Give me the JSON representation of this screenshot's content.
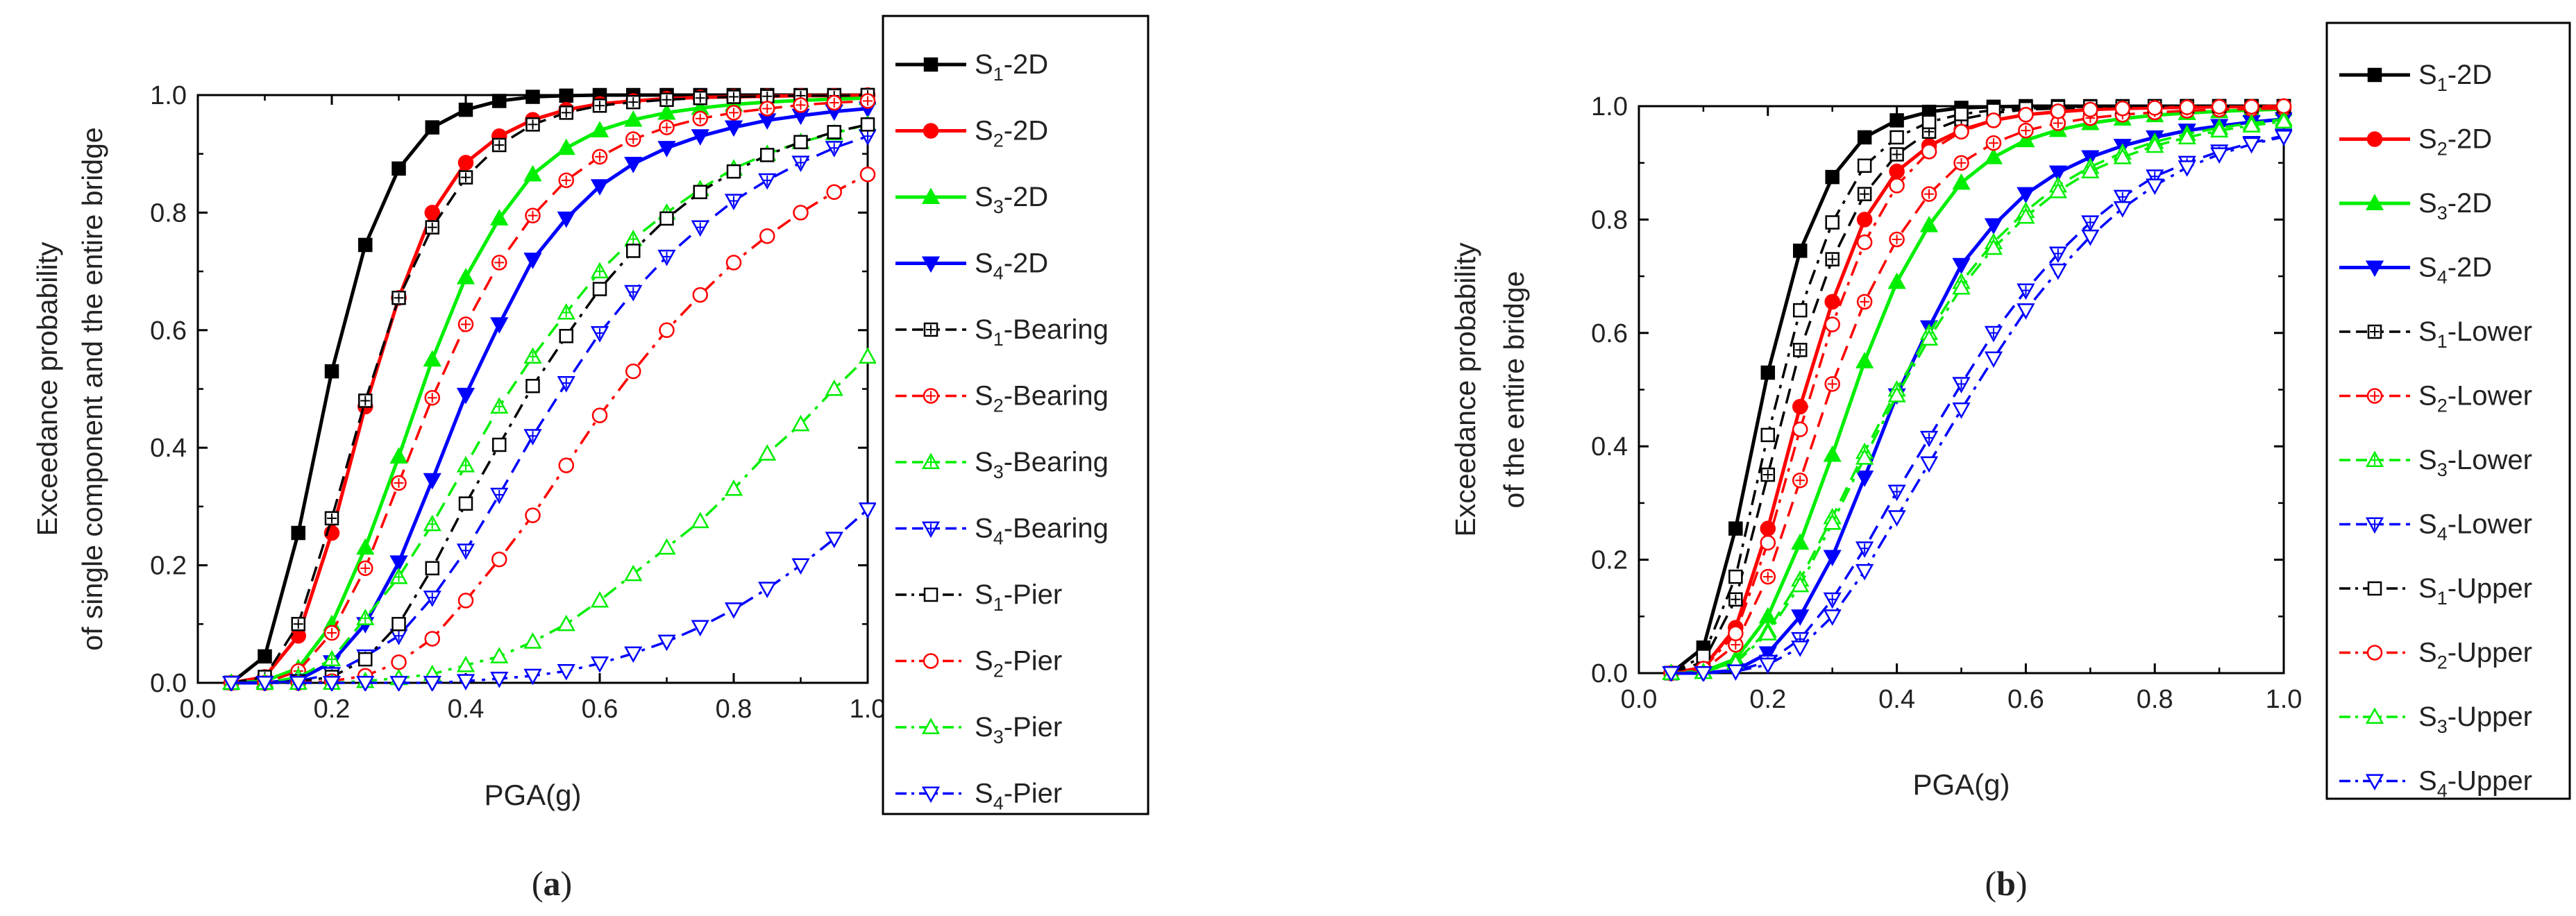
{
  "chart_data": [
    {
      "type": "line",
      "panel_label": "(a)",
      "xlabel": "PGA(g)",
      "ylabel_lines": [
        "Exceedance probability",
        "of single component and the entire bridge"
      ],
      "xlim": [
        0,
        1.0
      ],
      "ylim": [
        0,
        1.0
      ],
      "xticks": [
        "0.0",
        "0.2",
        "0.4",
        "0.6",
        "0.8",
        "1.0"
      ],
      "yticks": [
        "0.0",
        "0.2",
        "0.4",
        "0.6",
        "0.8",
        "1.0"
      ],
      "grid": false,
      "legend_position": "right",
      "x": [
        0.05,
        0.1,
        0.15,
        0.2,
        0.25,
        0.3,
        0.35,
        0.4,
        0.45,
        0.5,
        0.55,
        0.6,
        0.65,
        0.7,
        0.75,
        0.8,
        0.85,
        0.9,
        0.95,
        1.0
      ],
      "series": [
        {
          "sub": "1",
          "suffix": "-2D",
          "color": "#000000",
          "dash": "solid",
          "marker": "square",
          "filled": true,
          "values": [
            0.0,
            0.045,
            0.255,
            0.53,
            0.745,
            0.875,
            0.945,
            0.975,
            0.99,
            0.997,
            0.999,
            1.0,
            1.0,
            1.0,
            1.0,
            1.0,
            1.0,
            1.0,
            1.0,
            1.0
          ]
        },
        {
          "sub": "2",
          "suffix": "-2D",
          "color": "#ff0000",
          "dash": "solid",
          "marker": "circle",
          "filled": true,
          "values": [
            0.0,
            0.01,
            0.08,
            0.255,
            0.47,
            0.655,
            0.8,
            0.885,
            0.93,
            0.958,
            0.975,
            0.985,
            0.99,
            0.994,
            0.996,
            0.997,
            0.998,
            0.999,
            0.999,
            1.0
          ]
        },
        {
          "sub": "3",
          "suffix": "-2D",
          "color": "#00ee00",
          "dash": "solid",
          "marker": "triangle-up",
          "filled": true,
          "values": [
            0.0,
            0.003,
            0.025,
            0.1,
            0.23,
            0.385,
            0.55,
            0.69,
            0.79,
            0.865,
            0.91,
            0.94,
            0.958,
            0.97,
            0.978,
            0.984,
            0.988,
            0.991,
            0.993,
            0.995
          ]
        },
        {
          "sub": "4",
          "suffix": "-2D",
          "color": "#0000ff",
          "dash": "solid",
          "marker": "triangle-down",
          "filled": true,
          "values": [
            0.0,
            0.0,
            0.005,
            0.035,
            0.1,
            0.205,
            0.345,
            0.49,
            0.61,
            0.72,
            0.79,
            0.845,
            0.883,
            0.91,
            0.93,
            0.945,
            0.957,
            0.965,
            0.972,
            0.977
          ]
        },
        {
          "sub": "1",
          "suffix": "-Bearing",
          "color": "#000000",
          "dash": "dash",
          "marker": "square-plus",
          "filled": false,
          "values": [
            0.0,
            0.01,
            0.1,
            0.28,
            0.48,
            0.655,
            0.775,
            0.86,
            0.915,
            0.95,
            0.97,
            0.982,
            0.988,
            0.992,
            0.995,
            0.997,
            0.998,
            0.999,
            0.999,
            1.0
          ]
        },
        {
          "sub": "2",
          "suffix": "-Bearing",
          "color": "#ff0000",
          "dash": "dash",
          "marker": "circle-plus",
          "filled": false,
          "values": [
            0.0,
            0.0,
            0.02,
            0.085,
            0.195,
            0.34,
            0.485,
            0.61,
            0.715,
            0.795,
            0.855,
            0.895,
            0.925,
            0.945,
            0.96,
            0.97,
            0.977,
            0.983,
            0.987,
            0.99
          ]
        },
        {
          "sub": "3",
          "suffix": "-Bearing",
          "color": "#00ee00",
          "dash": "dash",
          "marker": "triangle-up-plus",
          "filled": false,
          "values": [
            0.0,
            0.0,
            0.01,
            0.04,
            0.11,
            0.18,
            0.27,
            0.37,
            0.47,
            0.555,
            0.63,
            0.7,
            0.755,
            0.8,
            0.84,
            0.875,
            0.9,
            0.92,
            0.935,
            0.95
          ]
        },
        {
          "sub": "4",
          "suffix": "-Bearing",
          "color": "#0000ff",
          "dash": "dash",
          "marker": "triangle-down-plus",
          "filled": false,
          "values": [
            0.0,
            0.0,
            0.003,
            0.015,
            0.045,
            0.08,
            0.145,
            0.225,
            0.32,
            0.42,
            0.51,
            0.595,
            0.665,
            0.725,
            0.775,
            0.82,
            0.855,
            0.885,
            0.91,
            0.93
          ]
        },
        {
          "sub": "1",
          "suffix": "-Pier",
          "color": "#000000",
          "dash": "dashdot",
          "marker": "square",
          "filled": false,
          "values": [
            0.0,
            0.0,
            0.002,
            0.01,
            0.04,
            0.1,
            0.195,
            0.305,
            0.405,
            0.505,
            0.59,
            0.67,
            0.735,
            0.79,
            0.835,
            0.87,
            0.898,
            0.92,
            0.937,
            0.95
          ]
        },
        {
          "sub": "2",
          "suffix": "-Pier",
          "color": "#ff0000",
          "dash": "dashdot",
          "marker": "circle",
          "filled": false,
          "values": [
            0.0,
            0.0,
            0.0,
            0.003,
            0.012,
            0.035,
            0.075,
            0.14,
            0.21,
            0.285,
            0.37,
            0.455,
            0.53,
            0.6,
            0.66,
            0.715,
            0.76,
            0.8,
            0.835,
            0.865
          ]
        },
        {
          "sub": "3",
          "suffix": "-Pier",
          "color": "#00ee00",
          "dash": "dashdot",
          "marker": "triangle-up",
          "filled": false,
          "values": [
            0.0,
            0.0,
            0.0,
            0.0,
            0.003,
            0.008,
            0.015,
            0.03,
            0.045,
            0.07,
            0.1,
            0.14,
            0.185,
            0.23,
            0.275,
            0.33,
            0.39,
            0.44,
            0.5,
            0.555
          ]
        },
        {
          "sub": "4",
          "suffix": "-Pier",
          "color": "#0000ff",
          "dash": "dashdot",
          "marker": "triangle-down",
          "filled": false,
          "values": [
            0.0,
            0.0,
            0.0,
            0.0,
            0.0,
            0.0,
            0.0,
            0.003,
            0.007,
            0.012,
            0.02,
            0.033,
            0.05,
            0.07,
            0.095,
            0.125,
            0.16,
            0.2,
            0.245,
            0.295
          ]
        }
      ]
    },
    {
      "type": "line",
      "panel_label": "(b)",
      "xlabel": "PGA(g)",
      "ylabel_lines": [
        "Exceedance probability",
        "of the entire bridge"
      ],
      "xlim": [
        0,
        1.0
      ],
      "ylim": [
        0,
        1.0
      ],
      "xticks": [
        "0.0",
        "0.2",
        "0.4",
        "0.6",
        "0.8",
        "1.0"
      ],
      "yticks": [
        "0.0",
        "0.2",
        "0.4",
        "0.6",
        "0.8",
        "1.0"
      ],
      "grid": false,
      "legend_position": "right",
      "x": [
        0.05,
        0.1,
        0.15,
        0.2,
        0.25,
        0.3,
        0.35,
        0.4,
        0.45,
        0.5,
        0.55,
        0.6,
        0.65,
        0.7,
        0.75,
        0.8,
        0.85,
        0.9,
        0.95,
        1.0
      ],
      "series": [
        {
          "sub": "1",
          "suffix": "-2D",
          "color": "#000000",
          "dash": "solid",
          "marker": "square",
          "filled": true,
          "values": [
            0.0,
            0.045,
            0.255,
            0.53,
            0.745,
            0.875,
            0.945,
            0.975,
            0.99,
            0.997,
            0.999,
            1.0,
            1.0,
            1.0,
            1.0,
            1.0,
            1.0,
            1.0,
            1.0,
            1.0
          ]
        },
        {
          "sub": "2",
          "suffix": "-2D",
          "color": "#ff0000",
          "dash": "solid",
          "marker": "circle",
          "filled": true,
          "values": [
            0.0,
            0.01,
            0.08,
            0.255,
            0.47,
            0.655,
            0.8,
            0.885,
            0.93,
            0.958,
            0.975,
            0.985,
            0.99,
            0.994,
            0.996,
            0.997,
            0.998,
            0.999,
            0.999,
            1.0
          ]
        },
        {
          "sub": "3",
          "suffix": "-2D",
          "color": "#00ee00",
          "dash": "solid",
          "marker": "triangle-up",
          "filled": true,
          "values": [
            0.0,
            0.003,
            0.025,
            0.1,
            0.23,
            0.385,
            0.55,
            0.69,
            0.79,
            0.865,
            0.91,
            0.94,
            0.958,
            0.97,
            0.978,
            0.984,
            0.988,
            0.991,
            0.993,
            0.995
          ]
        },
        {
          "sub": "4",
          "suffix": "-2D",
          "color": "#0000ff",
          "dash": "solid",
          "marker": "triangle-down",
          "filled": true,
          "values": [
            0.0,
            0.0,
            0.005,
            0.035,
            0.1,
            0.205,
            0.345,
            0.49,
            0.61,
            0.72,
            0.79,
            0.845,
            0.883,
            0.91,
            0.93,
            0.945,
            0.957,
            0.965,
            0.972,
            0.977
          ]
        },
        {
          "sub": "1",
          "suffix": "-Lower",
          "color": "#000000",
          "dash": "dash",
          "marker": "square-plus",
          "filled": false,
          "values": [
            0.0,
            0.02,
            0.13,
            0.35,
            0.57,
            0.73,
            0.845,
            0.915,
            0.955,
            0.977,
            0.988,
            0.994,
            0.996,
            0.998,
            0.999,
            0.999,
            1.0,
            1.0,
            1.0,
            1.0
          ]
        },
        {
          "sub": "2",
          "suffix": "-Lower",
          "color": "#ff0000",
          "dash": "dash",
          "marker": "circle-plus",
          "filled": false,
          "values": [
            0.0,
            0.005,
            0.05,
            0.17,
            0.34,
            0.51,
            0.655,
            0.765,
            0.845,
            0.9,
            0.935,
            0.957,
            0.97,
            0.979,
            0.985,
            0.989,
            0.992,
            0.994,
            0.995,
            0.996
          ]
        },
        {
          "sub": "3",
          "suffix": "-Lower",
          "color": "#00ee00",
          "dash": "dash",
          "marker": "triangle-up-plus",
          "filled": false,
          "values": [
            0.0,
            0.002,
            0.02,
            0.075,
            0.165,
            0.275,
            0.39,
            0.5,
            0.6,
            0.69,
            0.76,
            0.815,
            0.86,
            0.893,
            0.918,
            0.937,
            0.951,
            0.962,
            0.97,
            0.977
          ]
        },
        {
          "sub": "4",
          "suffix": "-Lower",
          "color": "#0000ff",
          "dash": "dash",
          "marker": "triangle-down-plus",
          "filled": false,
          "values": [
            0.0,
            0.0,
            0.004,
            0.02,
            0.06,
            0.13,
            0.22,
            0.32,
            0.415,
            0.51,
            0.6,
            0.675,
            0.74,
            0.795,
            0.84,
            0.876,
            0.9,
            0.92,
            0.935,
            0.948
          ]
        },
        {
          "sub": "1",
          "suffix": "-Upper",
          "color": "#000000",
          "dash": "dashdot",
          "marker": "square",
          "filled": false,
          "values": [
            0.0,
            0.03,
            0.17,
            0.42,
            0.64,
            0.795,
            0.895,
            0.945,
            0.972,
            0.986,
            0.993,
            0.996,
            0.998,
            0.999,
            0.999,
            1.0,
            1.0,
            1.0,
            1.0,
            1.0
          ]
        },
        {
          "sub": "2",
          "suffix": "-Upper",
          "color": "#ff0000",
          "dash": "dashdot",
          "marker": "circle",
          "filled": false,
          "values": [
            0.0,
            0.008,
            0.07,
            0.23,
            0.43,
            0.615,
            0.76,
            0.86,
            0.92,
            0.955,
            0.975,
            0.985,
            0.991,
            0.994,
            0.996,
            0.997,
            0.998,
            0.999,
            0.999,
            1.0
          ]
        },
        {
          "sub": "3",
          "suffix": "-Upper",
          "color": "#00ee00",
          "dash": "dashdot",
          "marker": "triangle-up",
          "filled": false,
          "values": [
            0.0,
            0.002,
            0.018,
            0.07,
            0.155,
            0.265,
            0.38,
            0.49,
            0.59,
            0.68,
            0.75,
            0.805,
            0.85,
            0.885,
            0.91,
            0.93,
            0.945,
            0.957,
            0.966,
            0.973
          ]
        },
        {
          "sub": "4",
          "suffix": "-Upper",
          "color": "#0000ff",
          "dash": "dashdot",
          "marker": "triangle-down",
          "filled": false,
          "values": [
            0.0,
            0.0,
            0.003,
            0.015,
            0.045,
            0.1,
            0.18,
            0.275,
            0.37,
            0.465,
            0.555,
            0.64,
            0.71,
            0.77,
            0.82,
            0.86,
            0.892,
            0.915,
            0.933,
            0.946
          ]
        }
      ]
    }
  ]
}
